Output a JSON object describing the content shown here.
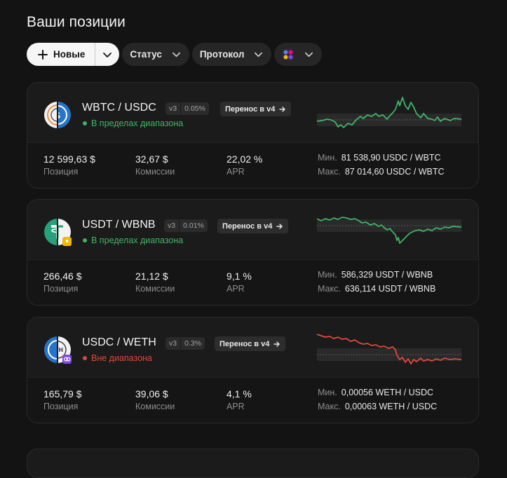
{
  "page": {
    "title": "Ваши позиции"
  },
  "toolbar": {
    "new_label": "Новые",
    "status_label": "Статус",
    "protocol_label": "Протокол"
  },
  "colors": {
    "in_range": "#3fb468",
    "out_of_range": "#e0493b",
    "background": "#131313"
  },
  "positions": [
    {
      "pair": "WBTC / USDC",
      "version": "v3",
      "fee": "0.05%",
      "migrate_label": "Перенос в v4",
      "status": "В пределах диапазона",
      "in_range": true,
      "value": "12 599,63 $",
      "value_label": "Позиция",
      "fees": "32,67 $",
      "fees_label": "Комиссии",
      "apr": "22,02 %",
      "apr_label": "APR",
      "min_label": "Мин.",
      "min": "81 538,90 USDC / WBTC",
      "max_label": "Макс.",
      "max": "87 014,60 USDC / WBTC"
    },
    {
      "pair": "USDT / WBNB",
      "version": "v3",
      "fee": "0.01%",
      "migrate_label": "Перенос в v4",
      "status": "В пределах диапазона",
      "in_range": true,
      "value": "266,46 $",
      "value_label": "Позиция",
      "fees": "21,12 $",
      "fees_label": "Комиссии",
      "apr": "9,1 %",
      "apr_label": "APR",
      "min_label": "Мин.",
      "min": "586,329 USDT / WBNB",
      "max_label": "Макс.",
      "max": "636,114 USDT / WBNB"
    },
    {
      "pair": "USDC / WETH",
      "version": "v3",
      "fee": "0.3%",
      "migrate_label": "Перенос в v4",
      "status": "Вне диапазона",
      "in_range": false,
      "value": "165,79 $",
      "value_label": "Позиция",
      "fees": "39,06 $",
      "fees_label": "Комиссии",
      "apr": "4,1 %",
      "apr_label": "APR",
      "min_label": "Мин.",
      "min": "0,00056 WETH / USDC",
      "max_label": "Макс.",
      "max": "0,00063 WETH / USDC"
    }
  ]
}
